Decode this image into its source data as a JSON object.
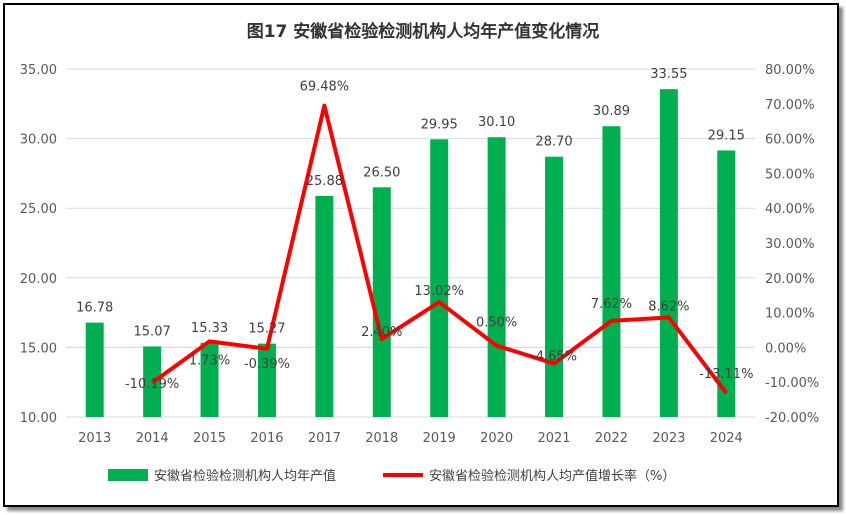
{
  "chart_data": {
    "type": "bar+line",
    "title": "图17 安徽省检验检测机构人均年产值变化情况",
    "categories": [
      "2013",
      "2014",
      "2015",
      "2016",
      "2017",
      "2018",
      "2019",
      "2020",
      "2021",
      "2022",
      "2023",
      "2024"
    ],
    "series": [
      {
        "name": "安徽省检验检测机构人均年产值",
        "type": "bar",
        "axis": "left",
        "color": "#00B050",
        "values": [
          16.78,
          15.07,
          15.33,
          15.27,
          25.88,
          26.5,
          29.95,
          30.1,
          28.7,
          30.89,
          33.55,
          29.15
        ],
        "labels": [
          "16.78",
          "15.07",
          "15.33",
          "15.27",
          "25.88",
          "26.50",
          "29.95",
          "30.10",
          "28.70",
          "30.89",
          "33.55",
          "29.15"
        ]
      },
      {
        "name": "安徽省检验检测机构人均产值增长率（%）",
        "type": "line",
        "axis": "right",
        "color": "#FF0000",
        "values": [
          null,
          -10.19,
          1.73,
          -0.39,
          69.48,
          2.4,
          13.02,
          0.5,
          -4.65,
          7.62,
          8.62,
          -13.11
        ],
        "labels": [
          "",
          "-10.19%",
          "1.73%",
          "-0.39%",
          "69.48%",
          "2.40%",
          "13.02%",
          "0.50%",
          "-4.65%",
          "7.62%",
          "8.62%",
          "-13.11%"
        ]
      }
    ],
    "left_axis": {
      "ylim": [
        10,
        35
      ],
      "ticks": [
        "10.00",
        "15.00",
        "20.00",
        "25.00",
        "30.00",
        "35.00"
      ]
    },
    "right_axis": {
      "ylim": [
        -20,
        80
      ],
      "ticks": [
        "-20.00%",
        "-10.00%",
        "0.00%",
        "10.00%",
        "20.00%",
        "30.00%",
        "40.00%",
        "50.00%",
        "60.00%",
        "70.00%",
        "80.00%"
      ]
    },
    "grid": true,
    "legend": "bottom"
  }
}
